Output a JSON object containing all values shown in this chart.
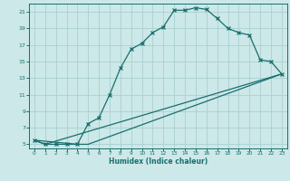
{
  "xlabel": "Humidex (Indice chaleur)",
  "ylabel": "",
  "background_color": "#cce8e8",
  "grid_color": "#aad0d0",
  "line_color": "#1a6e6e",
  "xlim": [
    -0.5,
    23.5
  ],
  "ylim": [
    4.5,
    22
  ],
  "xticks": [
    0,
    1,
    2,
    3,
    4,
    5,
    6,
    7,
    8,
    9,
    10,
    11,
    12,
    13,
    14,
    15,
    16,
    17,
    18,
    19,
    20,
    21,
    22,
    23
  ],
  "yticks": [
    5,
    7,
    9,
    11,
    13,
    15,
    17,
    19,
    21
  ],
  "curve1_x": [
    0,
    1,
    2,
    3,
    4,
    5,
    6,
    7,
    8,
    9,
    10,
    11,
    12,
    13,
    14,
    15,
    16,
    17,
    18,
    19,
    20,
    21,
    22,
    23
  ],
  "curve1_y": [
    5.5,
    5.0,
    5.0,
    5.0,
    5.0,
    7.5,
    8.2,
    11.0,
    14.2,
    16.5,
    17.2,
    18.5,
    19.2,
    21.2,
    21.2,
    21.5,
    21.3,
    20.2,
    19.0,
    18.5,
    18.2,
    15.2,
    15.0,
    13.5
  ],
  "curve2_x": [
    0,
    1,
    23
  ],
  "curve2_y": [
    5.5,
    5.0,
    13.5
  ],
  "curve3_x": [
    0,
    4,
    5,
    23
  ],
  "curve3_y": [
    5.5,
    5.0,
    5.0,
    13.5
  ]
}
